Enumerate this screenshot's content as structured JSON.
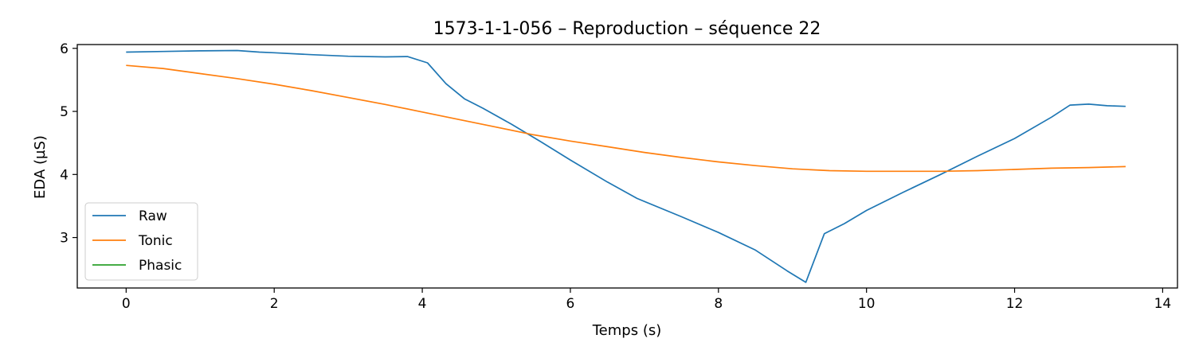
{
  "chart_data": {
    "type": "line",
    "title": "1573-1-1-056 – Reproduction – séquence 22",
    "xlabel": "Temps (s)",
    "ylabel": "EDA (µS)",
    "xlim": [
      -0.66,
      14.2
    ],
    "ylim": [
      2.2,
      6.06
    ],
    "xticks": [
      0,
      2,
      4,
      6,
      8,
      10,
      12,
      14
    ],
    "yticks": [
      3,
      4,
      5,
      6
    ],
    "grid": false,
    "legend_position": "lower-left",
    "series": [
      {
        "name": "Raw",
        "color": "#1f77b4",
        "x": [
          0,
          0.5,
          1.0,
          1.5,
          1.8,
          2.0,
          2.5,
          3.0,
          3.5,
          3.8,
          4.07,
          4.32,
          4.57,
          4.82,
          5.2,
          5.6,
          6.0,
          6.5,
          6.9,
          7.5,
          8.0,
          8.5,
          8.93,
          9.18,
          9.43,
          9.7,
          10.0,
          10.5,
          11.0,
          11.5,
          12.0,
          12.5,
          12.75,
          13.0,
          13.25,
          13.5
        ],
        "y": [
          5.94,
          5.95,
          5.96,
          5.965,
          5.94,
          5.93,
          5.9,
          5.875,
          5.865,
          5.87,
          5.77,
          5.44,
          5.2,
          5.05,
          4.8,
          4.52,
          4.23,
          3.88,
          3.62,
          3.33,
          3.08,
          2.8,
          2.47,
          2.29,
          3.06,
          3.22,
          3.43,
          3.72,
          4.0,
          4.29,
          4.57,
          4.91,
          5.1,
          5.115,
          5.09,
          5.08
        ]
      },
      {
        "name": "Tonic",
        "color": "#ff7f0e",
        "x": [
          0,
          0.5,
          1.0,
          1.5,
          2.0,
          2.5,
          3.0,
          3.5,
          4.0,
          4.5,
          5.0,
          5.5,
          6.0,
          6.5,
          7.0,
          7.5,
          8.0,
          8.5,
          9.0,
          9.5,
          10.0,
          10.5,
          11.0,
          11.5,
          12.0,
          12.5,
          13.0,
          13.5
        ],
        "y": [
          5.73,
          5.68,
          5.6,
          5.52,
          5.43,
          5.33,
          5.22,
          5.11,
          4.99,
          4.87,
          4.75,
          4.63,
          4.53,
          4.44,
          4.35,
          4.27,
          4.2,
          4.14,
          4.09,
          4.06,
          4.05,
          4.05,
          4.05,
          4.06,
          4.08,
          4.1,
          4.11,
          4.125
        ]
      },
      {
        "name": "Phasic",
        "color": "#2ca02c",
        "x": [],
        "y": []
      }
    ]
  }
}
